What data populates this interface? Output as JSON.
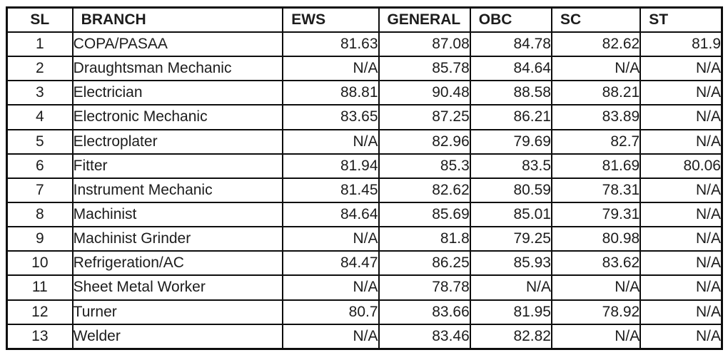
{
  "table": {
    "columns": [
      {
        "key": "sl",
        "label": "SL"
      },
      {
        "key": "branch",
        "label": "BRANCH"
      },
      {
        "key": "ews",
        "label": "EWS"
      },
      {
        "key": "general",
        "label": "GENERAL"
      },
      {
        "key": "obc",
        "label": "OBC"
      },
      {
        "key": "sc",
        "label": "SC"
      },
      {
        "key": "st",
        "label": "ST"
      }
    ],
    "rows": [
      {
        "sl": "1",
        "branch": "COPA/PASAA",
        "ews": "81.63",
        "general": "87.08",
        "obc": "84.78",
        "sc": "82.62",
        "st": "81.9"
      },
      {
        "sl": "2",
        "branch": "Draughtsman Mechanic",
        "ews": "N/A",
        "general": "85.78",
        "obc": "84.64",
        "sc": "N/A",
        "st": "N/A"
      },
      {
        "sl": "3",
        "branch": "Electrician",
        "ews": "88.81",
        "general": "90.48",
        "obc": "88.58",
        "sc": "88.21",
        "st": "N/A"
      },
      {
        "sl": "4",
        "branch": "Electronic Mechanic",
        "ews": "83.65",
        "general": "87.25",
        "obc": "86.21",
        "sc": "83.89",
        "st": "N/A"
      },
      {
        "sl": "5",
        "branch": "Electroplater",
        "ews": "N/A",
        "general": "82.96",
        "obc": "79.69",
        "sc": "82.7",
        "st": "N/A"
      },
      {
        "sl": "6",
        "branch": "Fitter",
        "ews": "81.94",
        "general": "85.3",
        "obc": "83.5",
        "sc": "81.69",
        "st": "80.06"
      },
      {
        "sl": "7",
        "branch": "Instrument Mechanic",
        "ews": "81.45",
        "general": "82.62",
        "obc": "80.59",
        "sc": "78.31",
        "st": "N/A"
      },
      {
        "sl": "8",
        "branch": "Machinist",
        "ews": "84.64",
        "general": "85.69",
        "obc": "85.01",
        "sc": "79.31",
        "st": "N/A"
      },
      {
        "sl": "9",
        "branch": "Machinist Grinder",
        "ews": "N/A",
        "general": "81.8",
        "obc": "79.25",
        "sc": "80.98",
        "st": "N/A"
      },
      {
        "sl": "10",
        "branch": "Refrigeration/AC",
        "ews": "84.47",
        "general": "86.25",
        "obc": "85.93",
        "sc": "83.62",
        "st": "N/A"
      },
      {
        "sl": "11",
        "branch": "Sheet Metal Worker",
        "ews": "N/A",
        "general": "78.78",
        "obc": "N/A",
        "sc": "N/A",
        "st": "N/A"
      },
      {
        "sl": "12",
        "branch": "Turner",
        "ews": "80.7",
        "general": "83.66",
        "obc": "81.95",
        "sc": "78.92",
        "st": "N/A"
      },
      {
        "sl": "13",
        "branch": "Welder",
        "ews": "N/A",
        "general": "83.46",
        "obc": "82.82",
        "sc": "N/A",
        "st": "N/A"
      }
    ]
  },
  "colors": {
    "border": "#0d0d0d",
    "text": "#1c1c1c",
    "background": "#ffffff"
  }
}
